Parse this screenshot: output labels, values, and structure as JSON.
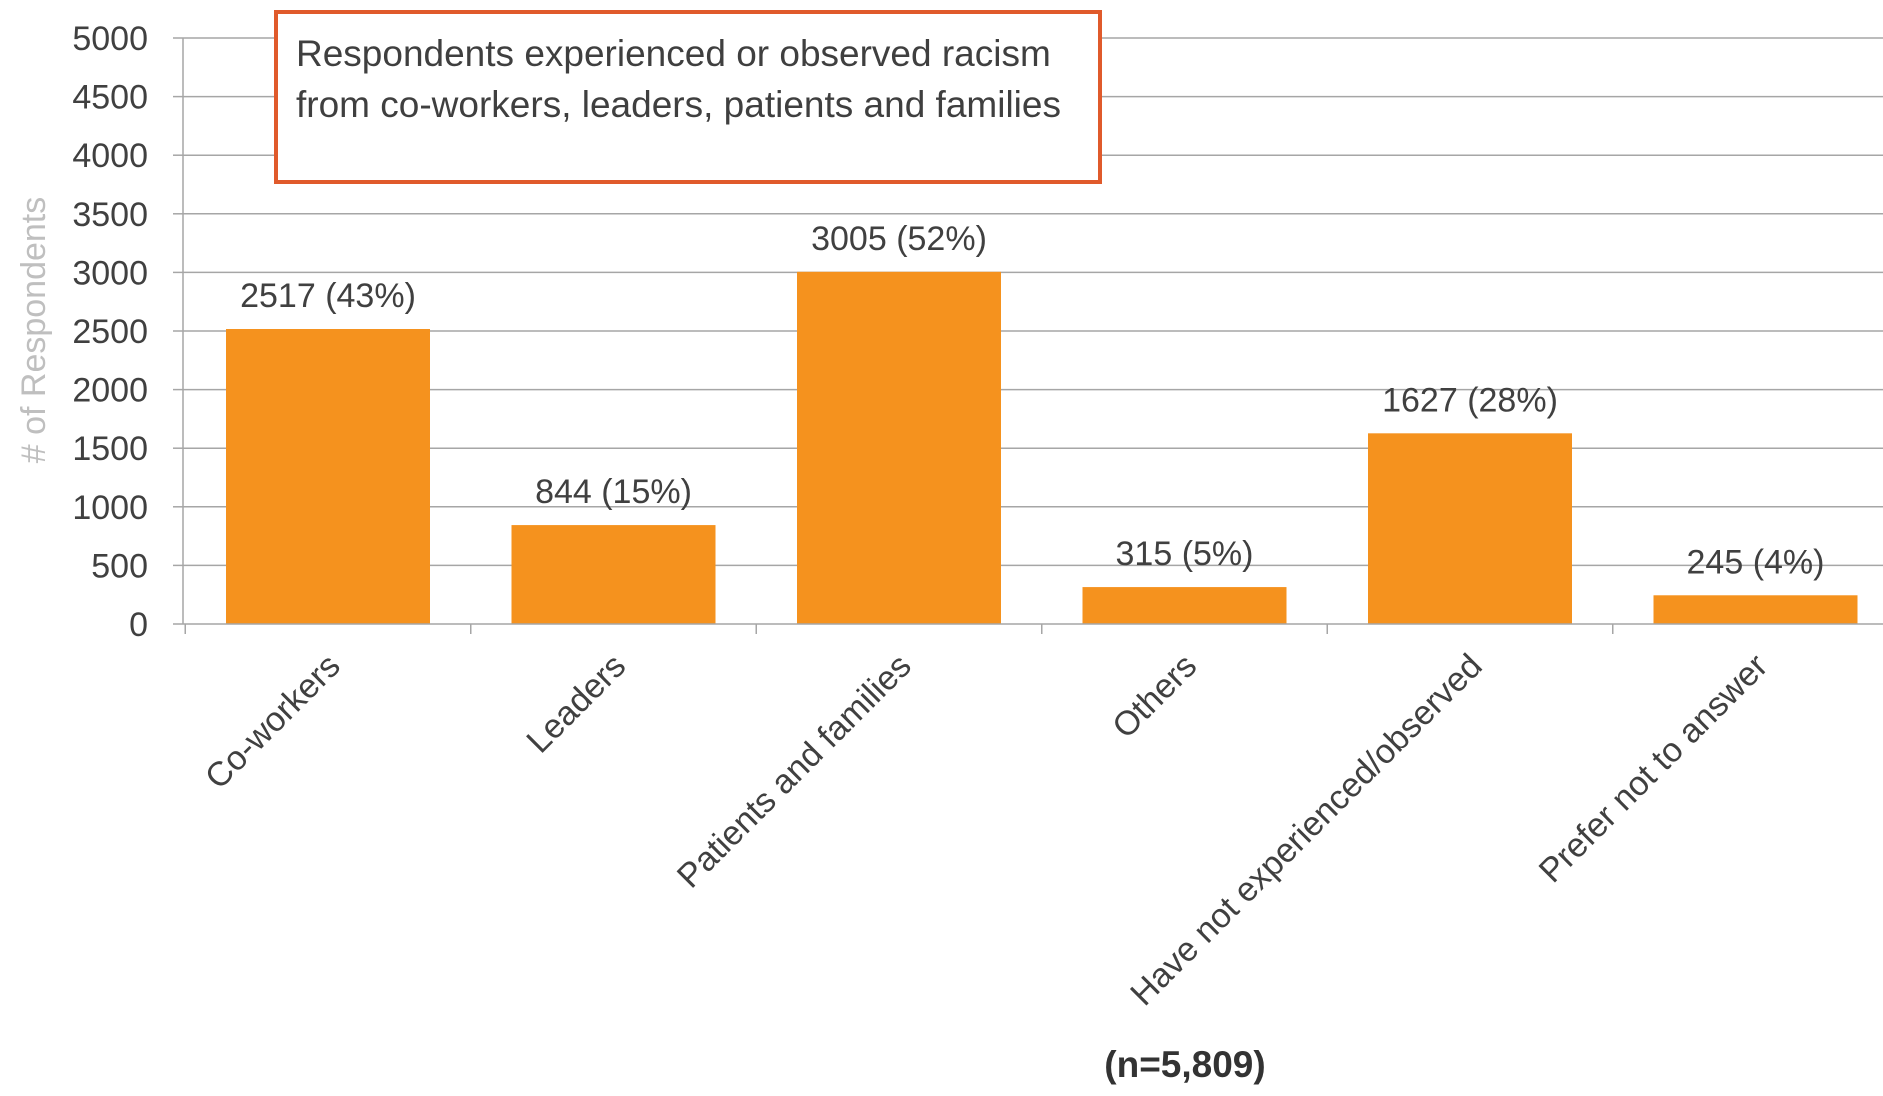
{
  "chart_data": {
    "type": "bar",
    "title": "",
    "xlabel": "",
    "ylabel": "# of Respondents",
    "ylim": [
      0,
      5000
    ],
    "yticks": [
      0,
      500,
      1000,
      1500,
      2000,
      2500,
      3000,
      3500,
      4000,
      4500,
      5000
    ],
    "grid": true,
    "categories": [
      "Co-workers",
      "Leaders",
      "Patients and families",
      "Others",
      "Have not experienced/observed",
      "Prefer not to answer"
    ],
    "values": [
      2517,
      844,
      3005,
      315,
      1627,
      245
    ],
    "data_labels": [
      "2517 (43%)",
      "844 (15%)",
      "3005 (52%)",
      "315 (5%)",
      "1627 (28%)",
      "245 (4%)"
    ],
    "annotation": "Respondents experienced or observed racism from co-workers, leaders, patients and families",
    "footnote": "(n=5,809)",
    "colors": {
      "bar": "#f5921e",
      "grid": "#a6a6a6",
      "annotation_border": "#e05a2b",
      "ylabel": "#bfbfbf",
      "text": "#404040"
    }
  }
}
